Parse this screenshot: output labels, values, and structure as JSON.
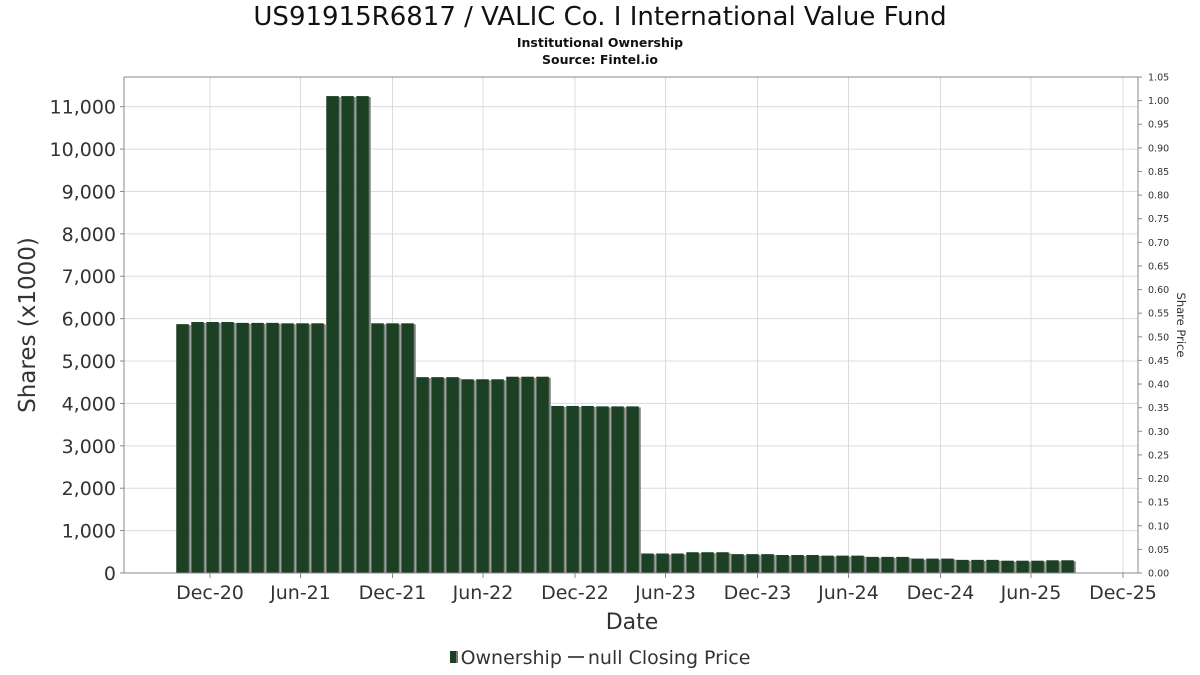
{
  "chart_data": {
    "type": "bar",
    "title": "US91915R6817 / VALIC Co. I International Value Fund",
    "subtitle": "Institutional Ownership",
    "source": "Source: Fintel.io",
    "xlabel": "Date",
    "ylabel": "Shares (x1000)",
    "y2label": "Share Price",
    "ylim": [
      0,
      11700
    ],
    "y2lim": [
      0,
      1.05
    ],
    "grid": true,
    "legend_position": "bottom",
    "x_ticks": [
      {
        "label": "Dec-20",
        "date": "2020-12-31"
      },
      {
        "label": "Jun-21",
        "date": "2021-06-30"
      },
      {
        "label": "Dec-21",
        "date": "2021-12-31"
      },
      {
        "label": "Jun-22",
        "date": "2022-06-30"
      },
      {
        "label": "Dec-22",
        "date": "2022-12-31"
      },
      {
        "label": "Jun-23",
        "date": "2023-06-30"
      },
      {
        "label": "Dec-23",
        "date": "2023-12-31"
      },
      {
        "label": "Jun-24",
        "date": "2024-06-30"
      },
      {
        "label": "Dec-24",
        "date": "2024-12-31"
      },
      {
        "label": "Jun-25",
        "date": "2025-06-30"
      },
      {
        "label": "Dec-25",
        "date": "2025-12-31"
      }
    ],
    "y_ticks": [
      "0",
      "1,000",
      "2,000",
      "3,000",
      "4,000",
      "5,000",
      "6,000",
      "7,000",
      "8,000",
      "9,000",
      "10,000",
      "11,000"
    ],
    "y_tick_values": [
      0,
      1000,
      2000,
      3000,
      4000,
      5000,
      6000,
      7000,
      8000,
      9000,
      10000,
      11000
    ],
    "y2_ticks": [
      "0.00",
      "0.05",
      "0.10",
      "0.15",
      "0.20",
      "0.25",
      "0.30",
      "0.35",
      "0.40",
      "0.45",
      "0.50",
      "0.55",
      "0.60",
      "0.65",
      "0.70",
      "0.75",
      "0.80",
      "0.85",
      "0.90",
      "0.95",
      "1.00",
      "1.05"
    ],
    "y2_tick_values": [
      0,
      0.05,
      0.1,
      0.15,
      0.2,
      0.25,
      0.3,
      0.35,
      0.4,
      0.45,
      0.5,
      0.55,
      0.6,
      0.65,
      0.7,
      0.75,
      0.8,
      0.85,
      0.9,
      0.95,
      1.0,
      1.05
    ],
    "series": [
      {
        "name": "Ownership",
        "color": "#1b4024",
        "shadow_color": "#7f7f7f",
        "dates": [
          "2020-11-06",
          "2020-12-06",
          "2021-01-05",
          "2021-02-04",
          "2021-03-06",
          "2021-04-05",
          "2021-05-05",
          "2021-06-04",
          "2021-07-04",
          "2021-08-03",
          "2021-09-02",
          "2021-10-02",
          "2021-11-01",
          "2021-12-01",
          "2021-12-31",
          "2022-01-30",
          "2022-03-01",
          "2022-03-31",
          "2022-04-30",
          "2022-05-30",
          "2022-06-29",
          "2022-07-29",
          "2022-08-28",
          "2022-09-27",
          "2022-10-27",
          "2022-11-26",
          "2022-12-26",
          "2023-01-25",
          "2023-02-24",
          "2023-03-26",
          "2023-04-25",
          "2023-05-25",
          "2023-06-24",
          "2023-07-24",
          "2023-08-23",
          "2023-09-22",
          "2023-10-22",
          "2023-11-21",
          "2023-12-21",
          "2024-01-20",
          "2024-02-19",
          "2024-03-20",
          "2024-04-19",
          "2024-05-19",
          "2024-06-18",
          "2024-07-18",
          "2024-08-17",
          "2024-09-16",
          "2024-10-16",
          "2024-11-15",
          "2024-12-15",
          "2025-01-14",
          "2025-02-13",
          "2025-03-15",
          "2025-04-14",
          "2025-05-14",
          "2025-06-13",
          "2025-07-13",
          "2025-08-12",
          "2025-09-11"
        ],
        "values": [
          5870,
          5920,
          5920,
          5920,
          5900,
          5900,
          5900,
          5890,
          5890,
          5890,
          11250,
          11250,
          11250,
          5890,
          5890,
          5890,
          4620,
          4620,
          4620,
          4570,
          4570,
          4570,
          4630,
          4630,
          4630,
          3940,
          3940,
          3940,
          3930,
          3930,
          3930,
          460,
          460,
          460,
          490,
          490,
          490,
          445,
          445,
          445,
          425,
          425,
          425,
          410,
          410,
          410,
          380,
          380,
          380,
          340,
          340,
          340,
          310,
          310,
          310,
          290,
          290,
          290,
          300,
          300
        ]
      },
      {
        "name": "null Closing Price",
        "color": "#555555",
        "values": []
      }
    ]
  },
  "legend": {
    "ownership_label": "Ownership",
    "price_label": "null Closing Price"
  }
}
